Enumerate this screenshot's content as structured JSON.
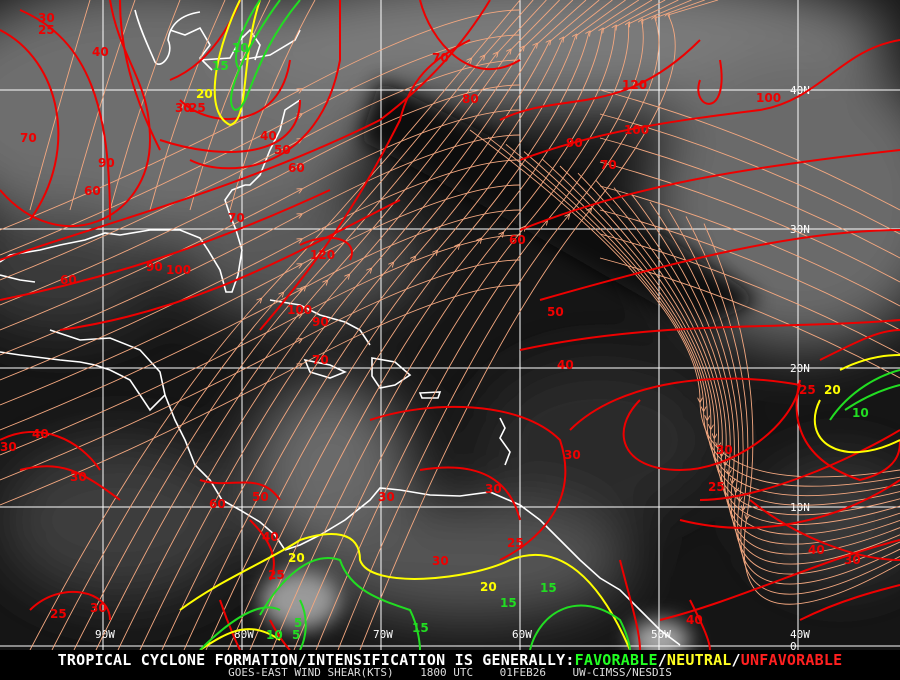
{
  "product": {
    "headline_prefix": "TROPICAL CYCLONE FORMATION/INTENSIFICATION IS GENERALLY:",
    "favorable": "FAVORABLE",
    "neutral": "NEUTRAL",
    "unfavorable": "UNFAVORABLE",
    "separator": "/",
    "source": "GOES-EAST WIND SHEAR(KTS)",
    "time": "1800 UTC",
    "date": "01FEB26",
    "credit": "UW-CIMSS/NESDIS"
  },
  "grid": {
    "longitudes": [
      "90W",
      "80W",
      "70W",
      "60W",
      "50W",
      "40W"
    ],
    "latitudes": [
      "40N",
      "30N",
      "20N",
      "10N",
      "0"
    ]
  },
  "colors": {
    "favorable": "#22dd22",
    "neutral": "#ffff00",
    "unfavorable": "#ee0000",
    "streamlines": "#f4a880",
    "coastline": "#ffffff",
    "grid": "#ffffff"
  },
  "contour_labels": [
    {
      "value": "30",
      "class": "unfavorable"
    },
    {
      "value": "25",
      "class": "unfavorable"
    },
    {
      "value": "40",
      "class": "unfavorable"
    },
    {
      "value": "70",
      "class": "unfavorable"
    },
    {
      "value": "90",
      "class": "unfavorable"
    },
    {
      "value": "60",
      "class": "unfavorable"
    },
    {
      "value": "60",
      "class": "unfavorable"
    },
    {
      "value": "90",
      "class": "unfavorable"
    },
    {
      "value": "100",
      "class": "unfavorable"
    },
    {
      "value": "30",
      "class": "unfavorable"
    },
    {
      "value": "25",
      "class": "unfavorable"
    },
    {
      "value": "40",
      "class": "unfavorable"
    },
    {
      "value": "50",
      "class": "unfavorable"
    },
    {
      "value": "60",
      "class": "unfavorable"
    },
    {
      "value": "70",
      "class": "unfavorable"
    },
    {
      "value": "120",
      "class": "unfavorable"
    },
    {
      "value": "70",
      "class": "unfavorable"
    },
    {
      "value": "80",
      "class": "unfavorable"
    },
    {
      "value": "120",
      "class": "unfavorable"
    },
    {
      "value": "100",
      "class": "unfavorable"
    },
    {
      "value": "100",
      "class": "unfavorable"
    },
    {
      "value": "90",
      "class": "unfavorable"
    },
    {
      "value": "70",
      "class": "unfavorable"
    },
    {
      "value": "60",
      "class": "unfavorable"
    },
    {
      "value": "50",
      "class": "unfavorable"
    },
    {
      "value": "40",
      "class": "unfavorable"
    },
    {
      "value": "100",
      "class": "unfavorable"
    },
    {
      "value": "90",
      "class": "unfavorable"
    },
    {
      "value": "70",
      "class": "unfavorable"
    },
    {
      "value": "40",
      "class": "unfavorable"
    },
    {
      "value": "30",
      "class": "unfavorable"
    },
    {
      "value": "30",
      "class": "unfavorable"
    },
    {
      "value": "60",
      "class": "unfavorable"
    },
    {
      "value": "50",
      "class": "unfavorable"
    },
    {
      "value": "40",
      "class": "unfavorable"
    },
    {
      "value": "25",
      "class": "unfavorable"
    },
    {
      "value": "30",
      "class": "unfavorable"
    },
    {
      "value": "30",
      "class": "unfavorable"
    },
    {
      "value": "30",
      "class": "unfavorable"
    },
    {
      "value": "25",
      "class": "unfavorable"
    },
    {
      "value": "30",
      "class": "unfavorable"
    },
    {
      "value": "25",
      "class": "unfavorable"
    },
    {
      "value": "30",
      "class": "unfavorable"
    },
    {
      "value": "25",
      "class": "unfavorable"
    },
    {
      "value": "40",
      "class": "unfavorable"
    },
    {
      "value": "30",
      "class": "unfavorable"
    },
    {
      "value": "25",
      "class": "unfavorable"
    },
    {
      "value": "30",
      "class": "unfavorable"
    },
    {
      "value": "40",
      "class": "unfavorable"
    },
    {
      "value": "20",
      "class": "neutral"
    },
    {
      "value": "20",
      "class": "neutral"
    },
    {
      "value": "20",
      "class": "neutral"
    },
    {
      "value": "20",
      "class": "neutral"
    },
    {
      "value": "10",
      "class": "favorable"
    },
    {
      "value": "15",
      "class": "favorable"
    },
    {
      "value": "15",
      "class": "favorable"
    },
    {
      "value": "15",
      "class": "favorable"
    },
    {
      "value": "15",
      "class": "favorable"
    },
    {
      "value": "5",
      "class": "favorable"
    },
    {
      "value": "10",
      "class": "favorable"
    },
    {
      "value": "5",
      "class": "favorable"
    },
    {
      "value": "10",
      "class": "favorable"
    }
  ]
}
